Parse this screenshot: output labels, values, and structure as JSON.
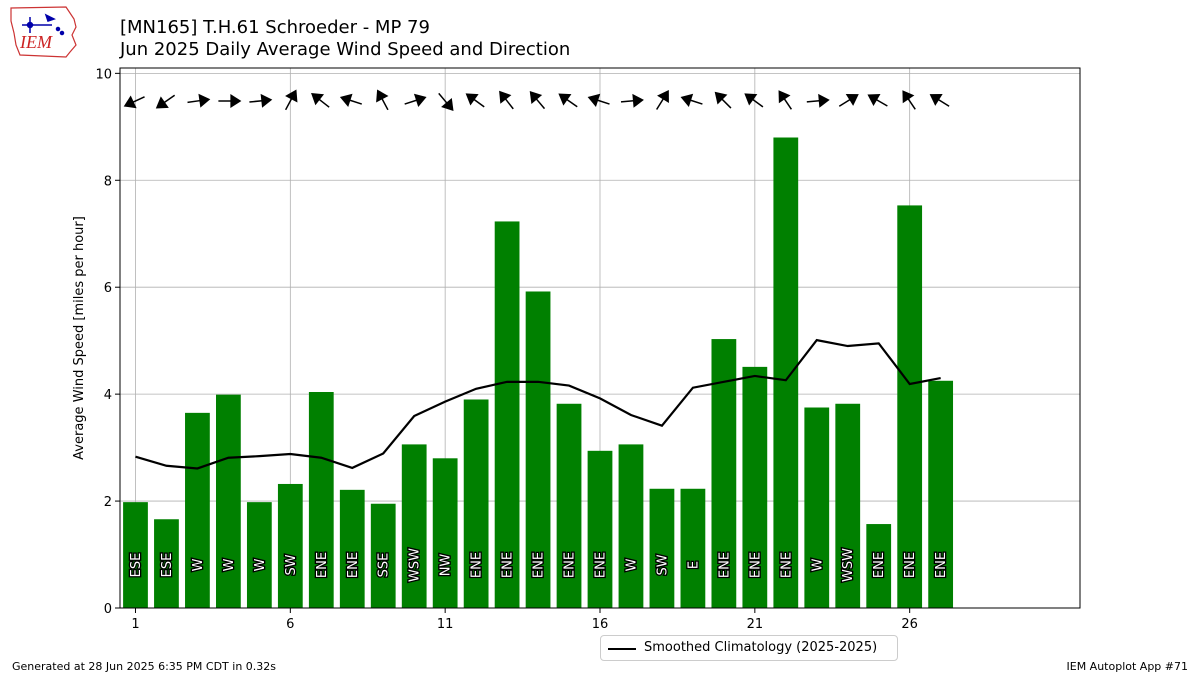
{
  "header": {
    "title_line1": "[MN165] T.H.61 Schroeder - MP 79",
    "title_line2": "Jun 2025 Daily Average Wind Speed and Direction"
  },
  "logo": {
    "text": "IEM",
    "icon": "iowa-state-outline-logo"
  },
  "footer": {
    "left": "Generated at 28 Jun 2025 6:35 PM CDT in 0.32s",
    "right": "IEM Autoplot App #71"
  },
  "legend": {
    "label": "Smoothed Climatology (2025-2025)"
  },
  "colors": {
    "bars": "#008000",
    "climatology": "#000000",
    "grid": "#b0b0b0"
  },
  "chart_data": {
    "type": "bar",
    "ylabel": "Average Wind Speed [miles per hour]",
    "xlabel": "",
    "xlim": [
      0.5,
      31.5
    ],
    "ylim": [
      0,
      10.1
    ],
    "x_ticks": [
      1,
      6,
      11,
      16,
      21,
      26
    ],
    "y_ticks": [
      0,
      2,
      4,
      6,
      8,
      10
    ],
    "grid": true,
    "legend_position": "bottom-center",
    "days": [
      1,
      2,
      3,
      4,
      5,
      6,
      7,
      8,
      9,
      10,
      11,
      12,
      13,
      14,
      15,
      16,
      17,
      18,
      19,
      20,
      21,
      22,
      23,
      24,
      25,
      26,
      27
    ],
    "speed": [
      1.98,
      1.66,
      3.65,
      3.99,
      1.98,
      2.32,
      4.04,
      2.21,
      1.95,
      3.06,
      2.8,
      3.9,
      7.23,
      5.92,
      3.82,
      2.94,
      3.06,
      2.23,
      2.23,
      5.03,
      4.51,
      8.8,
      3.75,
      3.82,
      1.57,
      7.53,
      4.25
    ],
    "direction_labels": [
      "ESE",
      "ESE",
      "W",
      "W",
      "W",
      "SW",
      "ENE",
      "ENE",
      "SSE",
      "WSW",
      "NW",
      "ENE",
      "ENE",
      "ENE",
      "ENE",
      "ENE",
      "W",
      "SW",
      "E",
      "ENE",
      "ENE",
      "ENE",
      "W",
      "WSW",
      "ENE",
      "ENE",
      "ENE"
    ],
    "arrow_angles_deg": [
      155,
      145,
      -8,
      0,
      -6,
      -62,
      -142,
      -162,
      -118,
      -18,
      50,
      -144,
      -128,
      -130,
      -145,
      -162,
      -5,
      -58,
      -162,
      -135,
      -144,
      -124,
      -5,
      -32,
      -150,
      -124,
      -148
    ],
    "series": [
      {
        "name": "Smoothed Climatology (2025-2025)",
        "values": [
          2.83,
          2.66,
          2.61,
          2.81,
          2.84,
          2.88,
          2.81,
          2.62,
          2.89,
          3.59,
          3.86,
          4.1,
          4.23,
          4.23,
          4.16,
          3.92,
          3.61,
          3.41,
          4.12,
          4.23,
          4.34,
          4.26,
          5.01,
          4.9,
          4.95,
          4.19,
          4.3
        ]
      }
    ]
  }
}
